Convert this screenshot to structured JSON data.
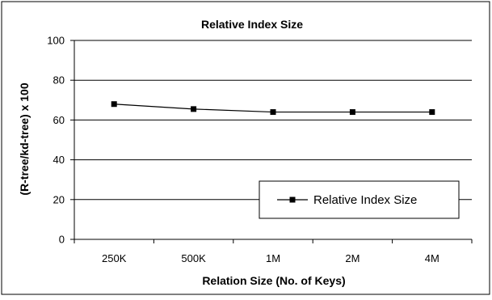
{
  "chart_data": {
    "type": "line",
    "title": "Relative Index Size",
    "xlabel": "Relation Size (No. of Keys)",
    "ylabel": "(R-tree/kd-tree) x 100",
    "categories": [
      "250K",
      "500K",
      "1M",
      "2M",
      "4M"
    ],
    "series": [
      {
        "name": "Relative Index Size",
        "values": [
          68,
          65.5,
          64,
          64,
          64
        ]
      }
    ],
    "ylim": [
      0,
      100
    ],
    "yticks": [
      0,
      20,
      40,
      60,
      80,
      100
    ],
    "ytick_labels": [
      "0",
      "20",
      "40",
      "60",
      "80",
      "100"
    ],
    "grid": "horizontal",
    "legend_position": "bottom-right inside plot",
    "colors": {
      "line": "#000000",
      "grid": "#000000",
      "background": "#ffffff"
    }
  }
}
